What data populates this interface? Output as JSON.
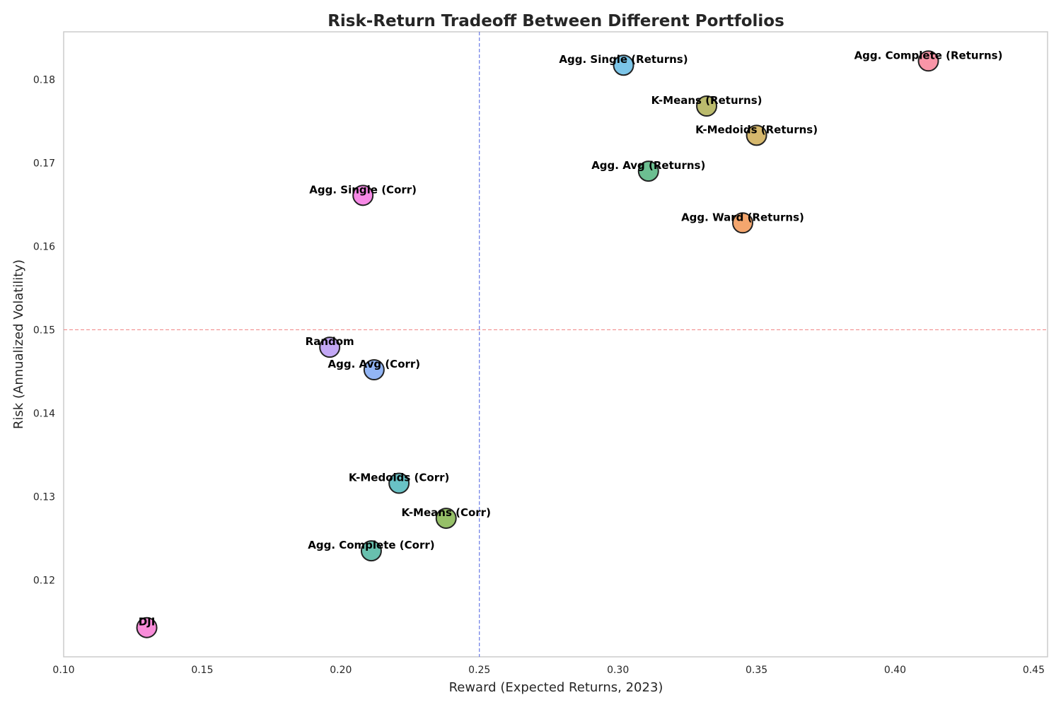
{
  "chart_data": {
    "type": "scatter",
    "title": "Risk-Return Tradeoff Between Different Portfolios",
    "xlabel": "Reward (Expected Returns, 2023)",
    "ylabel": "Risk (Annualized Volatility)",
    "xlim": [
      0.1,
      0.455
    ],
    "ylim": [
      0.1108,
      0.1857
    ],
    "xticks": [
      0.1,
      0.15,
      0.2,
      0.25,
      0.3,
      0.35,
      0.4,
      0.45
    ],
    "xtick_labels": [
      "0.10",
      "0.15",
      "0.20",
      "0.25",
      "0.30",
      "0.35",
      "0.40",
      "0.45"
    ],
    "yticks": [
      0.12,
      0.13,
      0.14,
      0.15,
      0.16,
      0.17,
      0.18
    ],
    "ytick_labels": [
      "0.12",
      "0.13",
      "0.14",
      "0.15",
      "0.16",
      "0.17",
      "0.18"
    ],
    "grid": false,
    "reference_lines": [
      {
        "orientation": "vertical",
        "value": 0.25,
        "color": "#4a5fe0",
        "style": "dashed"
      },
      {
        "orientation": "horizontal",
        "value": 0.15,
        "color": "#f08080",
        "style": "dashed"
      }
    ],
    "points": [
      {
        "name": "Agg. Complete (Returns)",
        "x": 0.412,
        "y": 0.1822,
        "color": "#f77189"
      },
      {
        "name": "Agg. Single (Returns)",
        "x": 0.302,
        "y": 0.1817,
        "color": "#50b1e0"
      },
      {
        "name": "K-Means (Returns)",
        "x": 0.332,
        "y": 0.1768,
        "color": "#a4a43c"
      },
      {
        "name": "K-Medoids (Returns)",
        "x": 0.35,
        "y": 0.1733,
        "color": "#c8a03c"
      },
      {
        "name": "Agg. Avg (Returns)",
        "x": 0.311,
        "y": 0.169,
        "color": "#3ba96c"
      },
      {
        "name": "Agg. Single (Corr)",
        "x": 0.208,
        "y": 0.1661,
        "color": "#f461dd"
      },
      {
        "name": "Agg. Ward (Returns)",
        "x": 0.345,
        "y": 0.1628,
        "color": "#f0883e"
      },
      {
        "name": "Random",
        "x": 0.196,
        "y": 0.1479,
        "color": "#ae8af0"
      },
      {
        "name": "Agg. Avg (Corr)",
        "x": 0.212,
        "y": 0.1452,
        "color": "#6e9cf2"
      },
      {
        "name": "K-Medoids (Corr)",
        "x": 0.221,
        "y": 0.1316,
        "color": "#37aeb2"
      },
      {
        "name": "K-Means (Corr)",
        "x": 0.238,
        "y": 0.1274,
        "color": "#73ab35"
      },
      {
        "name": "Agg. Complete (Corr)",
        "x": 0.211,
        "y": 0.1235,
        "color": "#35ab93"
      },
      {
        "name": "DJI",
        "x": 0.13,
        "y": 0.1143,
        "color": "#f565cc"
      }
    ]
  }
}
